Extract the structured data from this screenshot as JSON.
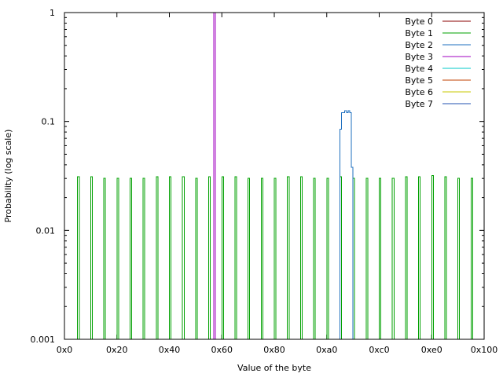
{
  "chart_data": {
    "type": "line",
    "title": "",
    "xlabel": "Value of the byte",
    "ylabel": "Probability (log scale)",
    "x_scale": "linear",
    "y_scale": "log",
    "xlim": [
      0,
      256
    ],
    "ylim": [
      0.001,
      1
    ],
    "grid": false,
    "legend_position": "top-right",
    "x_ticks": [
      {
        "value": 0,
        "label": "0x0"
      },
      {
        "value": 32,
        "label": "0x20"
      },
      {
        "value": 64,
        "label": "0x40"
      },
      {
        "value": 96,
        "label": "0x60"
      },
      {
        "value": 128,
        "label": "0x80"
      },
      {
        "value": 160,
        "label": "0xa0"
      },
      {
        "value": 192,
        "label": "0xc0"
      },
      {
        "value": 224,
        "label": "0xe0"
      },
      {
        "value": 256,
        "label": "0x100"
      }
    ],
    "y_ticks": [
      {
        "value": 1,
        "label": "1"
      },
      {
        "value": 0.1,
        "label": "0.1"
      },
      {
        "value": 0.01,
        "label": "0.01"
      },
      {
        "value": 0.001,
        "label": "0.001"
      }
    ],
    "series": [
      {
        "name": "Byte 0",
        "color": "#8b0000",
        "points": []
      },
      {
        "name": "Byte 1",
        "color": "#00a000",
        "points": [
          [
            8,
            0.031
          ],
          [
            16,
            0.031
          ],
          [
            24,
            0.03
          ],
          [
            32,
            0.03
          ],
          [
            40,
            0.03
          ],
          [
            48,
            0.03
          ],
          [
            56,
            0.031
          ],
          [
            64,
            0.031
          ],
          [
            72,
            0.031
          ],
          [
            80,
            0.03
          ],
          [
            88,
            0.031
          ],
          [
            96,
            0.031
          ],
          [
            104,
            0.031
          ],
          [
            112,
            0.03
          ],
          [
            120,
            0.03
          ],
          [
            128,
            0.03
          ],
          [
            136,
            0.031
          ],
          [
            144,
            0.031
          ],
          [
            152,
            0.03
          ],
          [
            160,
            0.03
          ],
          [
            168,
            0.031
          ],
          [
            176,
            0.03
          ],
          [
            184,
            0.03
          ],
          [
            192,
            0.03
          ],
          [
            200,
            0.03
          ],
          [
            208,
            0.031
          ],
          [
            216,
            0.031
          ],
          [
            224,
            0.032
          ],
          [
            232,
            0.031
          ],
          [
            240,
            0.03
          ],
          [
            248,
            0.03
          ]
        ]
      },
      {
        "name": "Byte 2",
        "color": "#1e6fbf",
        "points": [
          [
            168,
            0.085
          ],
          [
            169,
            0.12
          ],
          [
            170,
            0.12
          ],
          [
            171,
            0.125
          ],
          [
            172,
            0.12
          ],
          [
            173,
            0.125
          ],
          [
            174,
            0.12
          ],
          [
            175,
            0.038
          ]
        ]
      },
      {
        "name": "Byte 3",
        "color": "#a000c0",
        "points": [
          [
            91,
            1
          ]
        ]
      },
      {
        "name": "Byte 4",
        "color": "#00c8c8",
        "points": []
      },
      {
        "name": "Byte 5",
        "color": "#c04000",
        "points": []
      },
      {
        "name": "Byte 6",
        "color": "#c8c800",
        "points": []
      },
      {
        "name": "Byte 7",
        "color": "#2050b0",
        "points": []
      }
    ]
  }
}
